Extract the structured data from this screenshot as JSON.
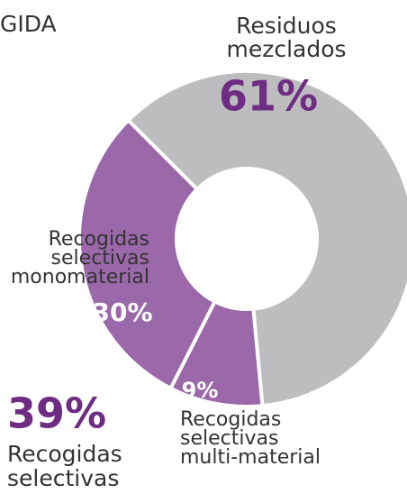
{
  "chart_data": {
    "type": "donut",
    "title": "GIDA",
    "categories": [
      [
        "Residuos",
        "mezclados"
      ],
      [
        "Recogidas",
        "selectivas",
        "multi-material"
      ],
      [
        "Recogidas",
        "selectivas",
        "monomaterial"
      ]
    ],
    "values": [
      61,
      9,
      30
    ],
    "value_labels": [
      "61%",
      "9%",
      "30%"
    ],
    "colors": [
      "#bdbdbf",
      "#9b68aa",
      "#9b68aa"
    ],
    "summary": {
      "value": 39,
      "label": "39%",
      "text": [
        "Recogidas",
        "selectivas"
      ],
      "color": "#6e2c82"
    }
  }
}
